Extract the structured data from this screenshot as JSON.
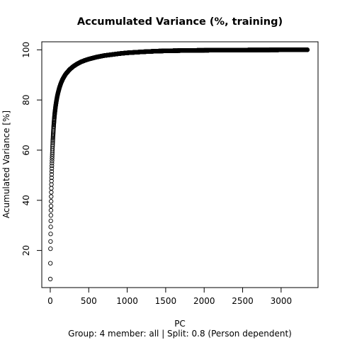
{
  "chart_data": {
    "type": "scatter",
    "title": "Accumulated Variance (%, training)",
    "xlabel": "PC",
    "ylabel": "Acumulated Variance [%]",
    "subtitle": "Group:  4 member:  all | Split: 0.8  (Person dependent)",
    "xlim": [
      -110,
      3480
    ],
    "ylim": [
      5.2,
      103.2
    ],
    "x_ticks": [
      0,
      500,
      1000,
      1500,
      2000,
      2500,
      3000
    ],
    "y_ticks": [
      20,
      40,
      60,
      80,
      100
    ],
    "grid": false,
    "legend": "none",
    "marker": "open-circle",
    "x_max": 3342,
    "series": [
      {
        "points": [
          [
            1,
            8.6
          ],
          [
            2,
            14.9
          ],
          [
            3,
            20.7
          ],
          [
            4,
            23.6
          ],
          [
            5,
            26.6
          ],
          [
            6,
            29.4
          ],
          [
            7,
            31.8
          ],
          [
            8,
            34.0
          ],
          [
            9,
            36.0
          ],
          [
            10,
            37.7
          ],
          [
            11,
            39.6
          ],
          [
            12,
            41.5
          ],
          [
            13,
            43.2
          ],
          [
            14,
            44.8
          ],
          [
            15,
            46.3
          ],
          [
            16,
            47.7
          ],
          [
            17,
            49.0
          ],
          [
            18,
            50.3
          ],
          [
            19,
            51.5
          ],
          [
            20,
            52.7
          ],
          [
            22,
            54.8
          ],
          [
            24,
            56.7
          ],
          [
            26,
            58.4
          ],
          [
            28,
            60.0
          ],
          [
            30,
            61.5
          ],
          [
            33,
            63.5
          ],
          [
            36,
            65.3
          ],
          [
            40,
            67.4
          ],
          [
            45,
            69.8
          ],
          [
            50,
            71.8
          ],
          [
            55,
            73.6
          ],
          [
            60,
            75.1
          ],
          [
            70,
            77.6
          ],
          [
            80,
            79.6
          ],
          [
            90,
            81.3
          ],
          [
            100,
            82.7
          ],
          [
            120,
            85.0
          ],
          [
            140,
            86.8
          ],
          [
            160,
            88.2
          ],
          [
            180,
            89.3
          ],
          [
            200,
            90.3
          ],
          [
            250,
            92.1
          ],
          [
            300,
            93.4
          ],
          [
            350,
            94.4
          ],
          [
            400,
            95.2
          ],
          [
            450,
            95.8
          ],
          [
            500,
            96.3
          ],
          [
            600,
            97.1
          ],
          [
            700,
            97.7
          ],
          [
            800,
            98.1
          ],
          [
            900,
            98.5
          ],
          [
            1000,
            98.8
          ],
          [
            1200,
            99.2
          ],
          [
            1400,
            99.5
          ],
          [
            1600,
            99.65
          ],
          [
            1800,
            99.75
          ],
          [
            2000,
            99.82
          ],
          [
            2250,
            99.88
          ],
          [
            2500,
            99.92
          ],
          [
            2750,
            99.95
          ],
          [
            3000,
            99.98
          ],
          [
            3342,
            100.0
          ]
        ]
      }
    ]
  }
}
